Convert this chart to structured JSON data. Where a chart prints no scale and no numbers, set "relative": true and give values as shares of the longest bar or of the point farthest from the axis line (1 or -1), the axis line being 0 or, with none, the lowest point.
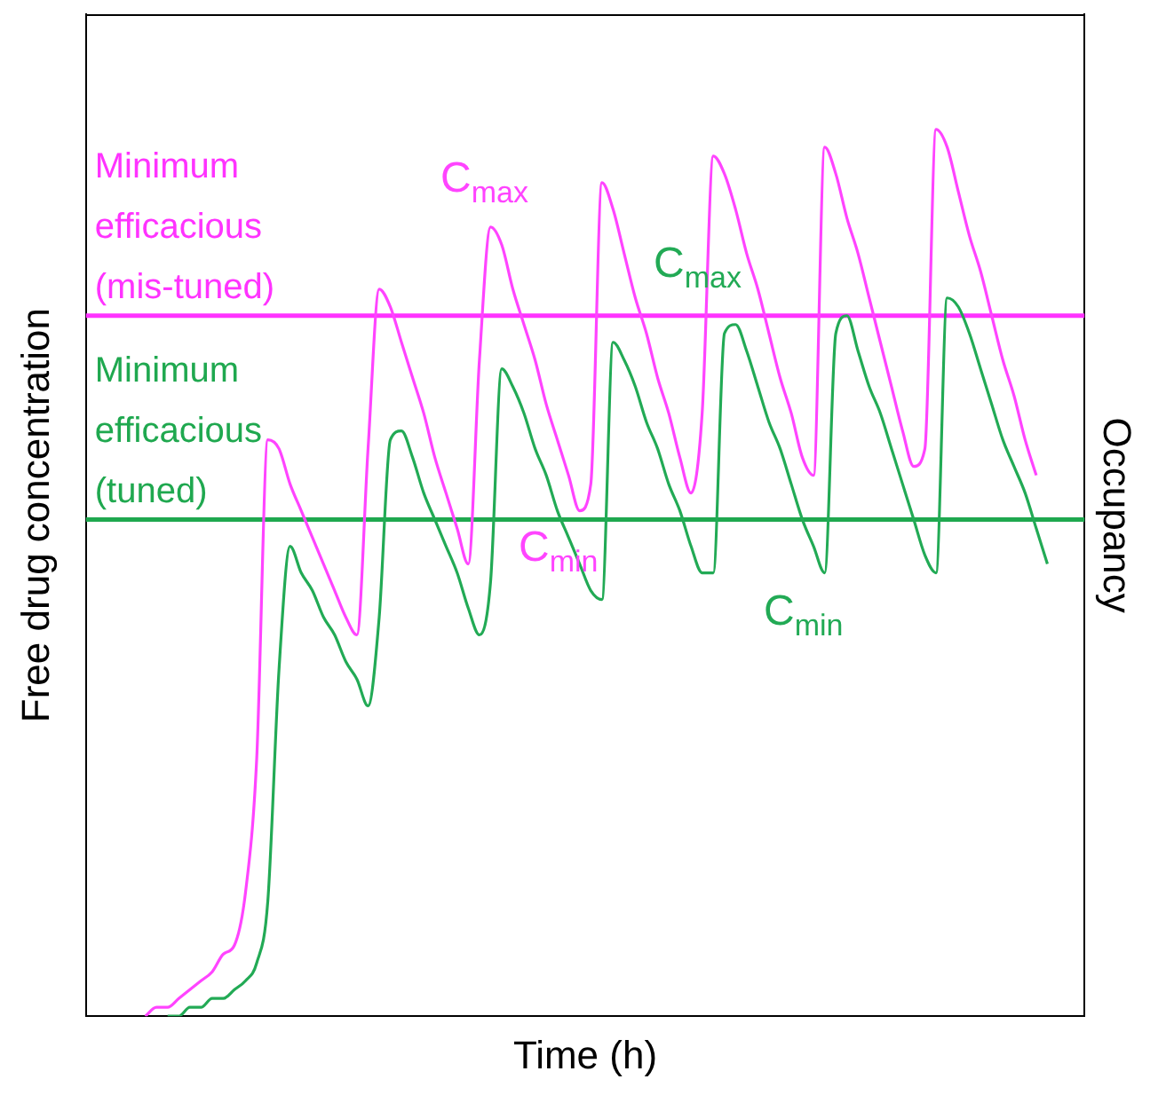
{
  "chart_data": {
    "type": "line",
    "relative": true,
    "xlabel": "Time (h)",
    "ylabel": "Free drug concentration",
    "y2label": "Occupancy",
    "legend": false,
    "grid": false,
    "marker": "none",
    "categories": [
      null,
      null,
      null,
      null,
      null,
      null,
      null,
      null,
      null,
      null,
      null,
      null,
      null,
      null,
      null,
      null,
      null,
      null,
      null,
      null,
      null,
      null,
      null,
      null,
      null,
      null,
      null,
      null,
      null,
      null,
      null,
      null,
      null,
      null,
      null,
      null,
      null,
      null,
      null,
      null,
      null,
      null,
      null,
      null,
      null,
      null,
      null,
      null,
      null,
      null,
      null,
      null,
      null,
      null,
      null,
      null,
      null,
      null,
      null,
      null,
      null,
      null,
      null,
      null,
      null,
      null,
      null,
      null,
      null,
      null,
      null,
      null,
      null,
      null,
      null,
      null,
      null,
      null,
      null,
      null,
      null,
      null
    ],
    "series": [
      {
        "color": "#ff44ff",
        "values": [
          0,
          0.01,
          0.01,
          0.02,
          0.03,
          0.04,
          0.05,
          0.07,
          0.08,
          0.14,
          0.29,
          0.65,
          0.64,
          0.6,
          0.57,
          0.54,
          0.51,
          0.48,
          0.45,
          0.43,
          0.64,
          0.82,
          0.8,
          0.76,
          0.72,
          0.68,
          0.63,
          0.59,
          0.55,
          0.51,
          0.74,
          0.89,
          0.87,
          0.82,
          0.78,
          0.74,
          0.69,
          0.65,
          0.61,
          0.57,
          0.6,
          0.94,
          0.91,
          0.86,
          0.81,
          0.77,
          0.72,
          0.68,
          0.63,
          0.59,
          0.68,
          0.97,
          0.95,
          0.91,
          0.86,
          0.82,
          0.77,
          0.72,
          0.68,
          0.63,
          0.61,
          0.98,
          0.95,
          0.9,
          0.86,
          0.81,
          0.76,
          0.71,
          0.66,
          0.62,
          0.64,
          1,
          0.98,
          0.93,
          0.88,
          0.84,
          0.79,
          0.74,
          0.7,
          0.65,
          0.61,
          null
        ]
      },
      {
        "color": "#22aa55",
        "values": [
          null,
          null,
          0,
          0.0,
          0.01,
          0.01,
          0.02,
          0.02,
          0.03,
          0.04,
          0.06,
          0.13,
          0.39,
          0.53,
          0.5,
          0.48,
          0.45,
          0.43,
          0.4,
          0.38,
          0.35,
          0.45,
          0.65,
          0.66,
          0.63,
          0.59,
          0.56,
          0.53,
          0.5,
          0.46,
          0.43,
          0.49,
          0.73,
          0.71,
          0.68,
          0.64,
          0.61,
          0.57,
          0.54,
          0.51,
          0.48,
          0.47,
          0.76,
          0.74,
          0.71,
          0.67,
          0.64,
          0.6,
          0.57,
          0.53,
          0.5,
          0.5,
          0.77,
          0.78,
          0.75,
          0.71,
          0.67,
          0.64,
          0.6,
          0.56,
          0.53,
          0.5,
          0.77,
          0.79,
          0.75,
          0.71,
          0.68,
          0.64,
          0.6,
          0.56,
          0.52,
          0.5,
          0.81,
          0.8,
          0.77,
          0.73,
          0.69,
          0.65,
          0.62,
          0.59,
          0.55,
          0.51
        ]
      }
    ],
    "ref_lines": [
      {
        "axis": "y",
        "value": 0.79,
        "label": "Minimum efficacious (mis-tuned)",
        "color": "#ff33ff"
      },
      {
        "axis": "y",
        "value": 0.56,
        "label": "Minimum efficacious (tuned)",
        "color": "#1fa84f"
      }
    ],
    "annotations": [
      "C$_{max}$",
      "C$_{max}$",
      "C$_{min}$",
      "C$_{min}$"
    ]
  }
}
